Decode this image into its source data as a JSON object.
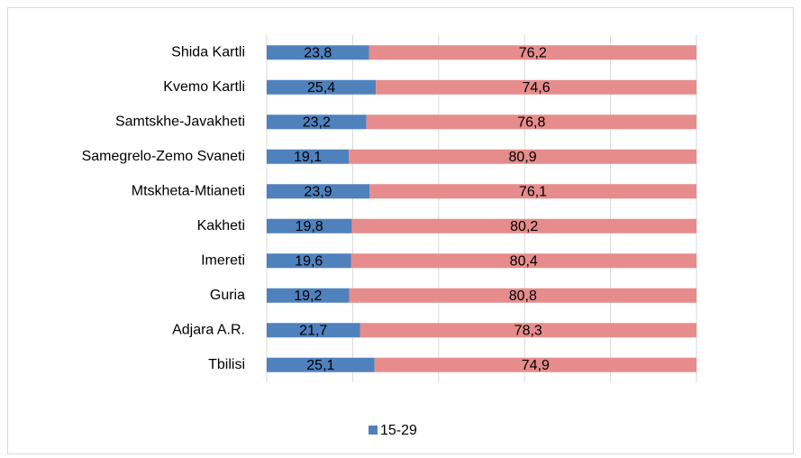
{
  "chart_data": {
    "type": "stacked-bar-horizontal",
    "categories": [
      "Shida Kartli",
      "Kvemo Kartli",
      "Samtskhe-Javakheti",
      "Samegrelo-Zemo Svaneti",
      "Mtskheta-Mtianeti",
      "Kakheti",
      "Imereti",
      "Guria",
      "Adjara A.R.",
      "Tbilisi"
    ],
    "series": [
      {
        "name": "15-29",
        "color": "#4f81bd",
        "values": [
          23.8,
          25.4,
          23.2,
          19.1,
          23.9,
          19.8,
          19.6,
          19.2,
          21.7,
          25.1
        ],
        "value_labels": [
          "23,8",
          "25,4",
          "23,2",
          "19,1",
          "23,9",
          "19,8",
          "19,6",
          "19,2",
          "21,7",
          "25,1"
        ]
      },
      {
        "color": "#e68c8c",
        "values": [
          76.2,
          74.6,
          76.8,
          80.9,
          76.1,
          80.2,
          80.4,
          80.8,
          78.3,
          74.9
        ],
        "value_labels": [
          "76,2",
          "74,6",
          "76,8",
          "80,9",
          "76,1",
          "80,2",
          "80,4",
          "80,8",
          "78,3",
          "74,9"
        ]
      }
    ],
    "xlim": [
      0,
      100
    ],
    "xticks": [
      0,
      20,
      40,
      60,
      80,
      100
    ],
    "grid": true,
    "legend": "bottom"
  }
}
